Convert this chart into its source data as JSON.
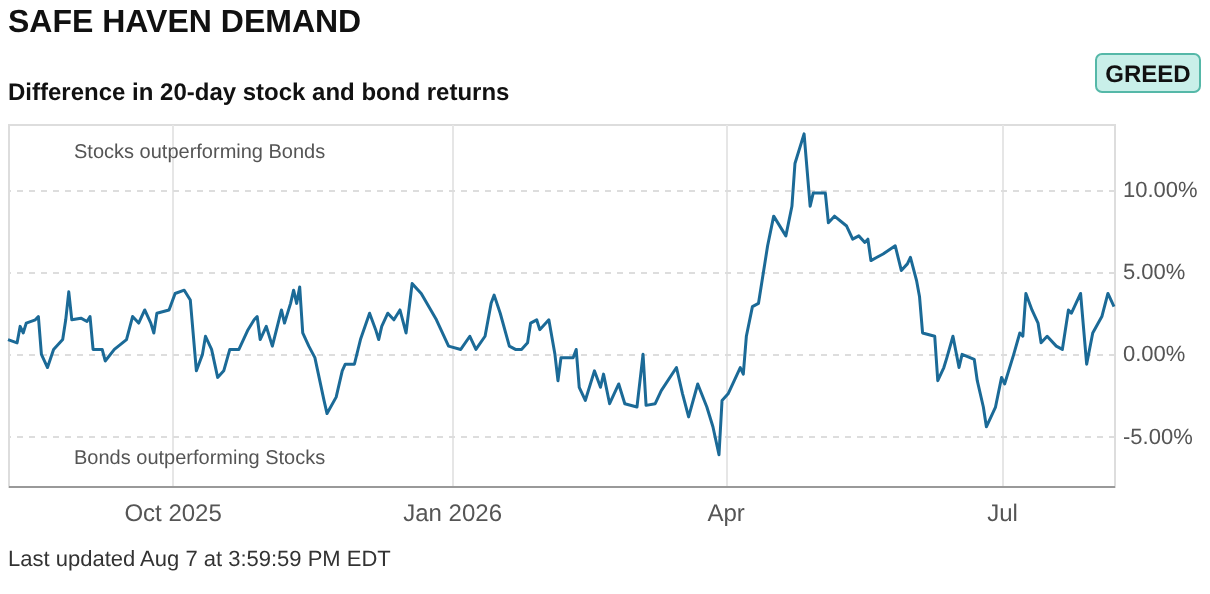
{
  "chart_data": {
    "type": "line",
    "title": "SAFE HAVEN DEMAND",
    "subtitle": "Difference in 20-day stock and bond returns",
    "annotations": [
      "Stocks outperforming Bonds",
      "Bonds outperforming Stocks",
      "GREED",
      "Last updated Aug 7 at 3:59:59 PM EDT"
    ],
    "x": [
      "2025-08-08",
      "2025-08-11",
      "2025-08-12",
      "2025-08-13",
      "2025-08-14",
      "2025-08-17",
      "2025-08-18",
      "2025-08-19",
      "2025-08-21",
      "2025-08-23",
      "2025-08-26",
      "2025-08-27",
      "2025-08-28",
      "2025-08-29",
      "2025-09-01",
      "2025-09-03",
      "2025-09-04",
      "2025-09-05",
      "2025-09-08",
      "2025-09-09",
      "2025-09-12",
      "2025-09-16",
      "2025-09-18",
      "2025-09-20",
      "2025-09-22",
      "2025-09-24",
      "2025-09-25",
      "2025-09-26",
      "2025-09-30",
      "2025-10-02",
      "2025-10-05",
      "2025-10-07",
      "2025-10-09",
      "2025-10-11",
      "2025-10-12",
      "2025-10-14",
      "2025-10-16",
      "2025-10-18",
      "2025-10-20",
      "2025-10-23",
      "2025-10-26",
      "2025-10-28",
      "2025-10-29",
      "2025-10-30",
      "2025-11-01",
      "2025-11-03",
      "2025-11-06",
      "2025-11-07",
      "2025-11-09",
      "2025-11-10",
      "2025-11-11",
      "2025-11-12",
      "2025-11-13",
      "2025-11-15",
      "2025-11-17",
      "2025-11-20",
      "2025-11-21",
      "2025-11-24",
      "2025-11-26",
      "2025-11-27",
      "2025-11-30",
      "2025-12-02",
      "2025-12-05",
      "2025-12-07",
      "2025-12-08",
      "2025-12-09",
      "2025-12-11",
      "2025-12-13",
      "2025-12-15",
      "2025-12-17",
      "2025-12-19",
      "2025-12-22",
      "2025-12-27",
      "2025-12-31",
      "2026-01-04",
      "2026-01-07",
      "2026-01-09",
      "2026-01-12",
      "2026-01-14",
      "2026-01-15",
      "2026-01-17",
      "2026-01-20",
      "2026-01-22",
      "2026-01-24",
      "2026-01-26",
      "2026-01-27",
      "2026-01-29",
      "2026-01-30",
      "2026-02-02",
      "2026-02-04",
      "2026-02-05",
      "2026-02-06",
      "2026-02-08",
      "2026-02-10",
      "2026-02-11",
      "2026-02-12",
      "2026-02-14",
      "2026-02-17",
      "2026-02-19",
      "2026-02-20",
      "2026-02-22",
      "2026-02-25",
      "2026-02-27",
      "2026-03-03",
      "2026-03-05",
      "2026-03-06",
      "2026-03-09",
      "2026-03-11",
      "2026-03-16",
      "2026-03-18",
      "2026-03-20",
      "2026-03-23",
      "2026-03-26",
      "2026-03-28",
      "2026-03-30",
      "2026-03-31",
      "2026-04-02",
      "2026-04-06",
      "2026-04-07",
      "2026-04-08",
      "2026-04-10",
      "2026-04-12",
      "2026-04-15",
      "2026-04-17",
      "2026-04-21",
      "2026-04-23",
      "2026-04-24",
      "2026-04-27",
      "2026-04-29",
      "2026-04-30",
      "2026-05-04",
      "2026-05-05",
      "2026-05-07",
      "2026-05-11",
      "2026-05-13",
      "2026-05-15",
      "2026-05-17",
      "2026-05-18",
      "2026-05-19",
      "2026-05-21",
      "2026-05-23",
      "2026-05-27",
      "2026-05-29",
      "2026-05-31",
      "2026-06-01",
      "2026-06-03",
      "2026-06-04",
      "2026-06-05",
      "2026-06-09",
      "2026-06-10",
      "2026-06-12",
      "2026-06-13",
      "2026-06-15",
      "2026-06-17",
      "2026-06-18",
      "2026-06-22",
      "2026-06-23",
      "2026-06-25",
      "2026-06-26",
      "2026-06-29",
      "2026-07-01",
      "2026-07-02",
      "2026-07-05",
      "2026-07-07",
      "2026-07-08",
      "2026-07-09",
      "2026-07-11",
      "2026-07-13",
      "2026-07-14",
      "2026-07-16",
      "2026-07-19",
      "2026-07-21",
      "2026-07-22",
      "2026-07-23",
      "2026-07-24",
      "2026-07-27",
      "2026-07-29",
      "2026-07-31",
      "2026-08-03",
      "2026-08-05",
      "2026-08-07"
    ],
    "series": [
      {
        "color": "#1b6a97",
        "values": [
          0.9,
          0.7,
          1.7,
          1.3,
          1.9,
          2.1,
          2.3,
          0.0,
          -0.8,
          0.3,
          0.9,
          2.1,
          3.8,
          2.1,
          2.2,
          2.0,
          2.3,
          0.3,
          0.3,
          -0.4,
          0.3,
          0.9,
          2.3,
          1.9,
          2.7,
          1.9,
          1.3,
          2.5,
          2.7,
          3.7,
          3.9,
          3.3,
          -1.0,
          0.0,
          1.1,
          0.3,
          -1.4,
          -1.0,
          0.3,
          0.3,
          1.5,
          2.1,
          2.3,
          0.9,
          1.7,
          0.5,
          2.7,
          1.9,
          3.1,
          3.9,
          3.1,
          4.1,
          1.3,
          0.5,
          -0.2,
          -2.8,
          -3.6,
          -2.6,
          -1.0,
          -0.6,
          -0.6,
          0.9,
          2.5,
          1.5,
          0.9,
          1.7,
          2.5,
          2.1,
          2.7,
          1.3,
          4.3,
          3.7,
          2.1,
          0.5,
          0.3,
          1.1,
          0.3,
          1.1,
          3.1,
          3.6,
          2.5,
          0.5,
          0.3,
          0.3,
          0.7,
          1.9,
          2.1,
          1.5,
          2.1,
          0.0,
          -1.6,
          -0.2,
          -0.2,
          -0.2,
          0.3,
          -2.0,
          -2.8,
          -1.0,
          -2.0,
          -1.2,
          -3.0,
          -1.8,
          -3.0,
          -3.2,
          0.0,
          -3.1,
          -3.0,
          -2.2,
          -0.8,
          -2.4,
          -3.8,
          -1.8,
          -3.2,
          -4.4,
          -6.1,
          -2.8,
          -2.4,
          -0.8,
          -1.2,
          1.1,
          2.9,
          3.1,
          6.6,
          8.4,
          7.2,
          9.0,
          11.6,
          13.4,
          9.0,
          9.8,
          9.8,
          8.0,
          8.4,
          7.8,
          7.0,
          7.2,
          6.8,
          7.0,
          5.7,
          5.9,
          6.1,
          6.6,
          5.1,
          5.5,
          5.9,
          4.5,
          3.5,
          1.3,
          1.1,
          -1.6,
          -0.8,
          -0.2,
          1.1,
          -0.8,
          0.0,
          -0.3,
          -1.6,
          -3.2,
          -4.4,
          -3.2,
          -1.4,
          -1.8,
          0.0,
          1.3,
          1.1,
          3.7,
          2.7,
          1.9,
          0.7,
          1.1,
          0.5,
          0.3,
          1.5,
          2.7,
          2.5,
          3.7,
          -0.6,
          1.3,
          2.3,
          3.7,
          2.9
        ]
      }
    ],
    "xlim": [
      "2025-08-08",
      "2026-08-07"
    ],
    "xticks": [
      {
        "value": "2025-10-01",
        "label": "Oct 2025"
      },
      {
        "value": "2026-01-01",
        "label": "Jan 2026"
      },
      {
        "value": "2026-04-01",
        "label": "Apr"
      },
      {
        "value": "2026-07-01",
        "label": "Jul"
      }
    ],
    "ylim": [
      -8,
      14
    ],
    "yticks": [
      {
        "value": -5,
        "label": "-5.00%"
      },
      {
        "value": 0,
        "label": "0.00%"
      },
      {
        "value": 5,
        "label": "5.00%"
      },
      {
        "value": 10,
        "label": "10.00%"
      }
    ],
    "grid": true,
    "line_style": "solid",
    "marker": "none"
  }
}
